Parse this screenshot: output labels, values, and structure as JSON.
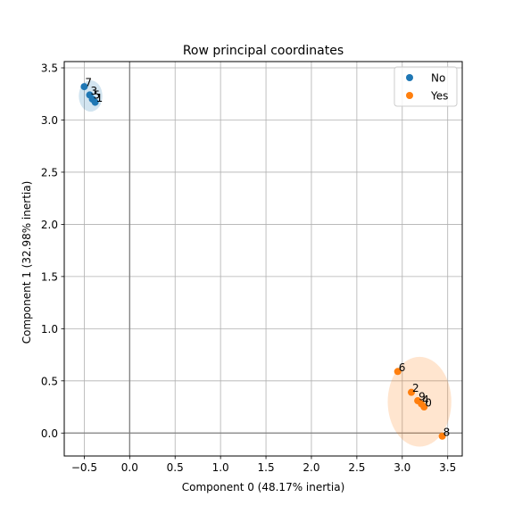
{
  "chart_data": {
    "type": "scatter",
    "title": "Row principal coordinates",
    "xlabel": "Component 0 (48.17% inertia)",
    "ylabel": "Component 1 (32.98% inertia)",
    "xlim": [
      -0.72,
      3.66
    ],
    "ylim": [
      -0.22,
      3.56
    ],
    "xticks": [
      -0.5,
      0.0,
      0.5,
      1.0,
      1.5,
      2.0,
      2.5,
      3.0,
      3.5
    ],
    "yticks": [
      0.0,
      0.5,
      1.0,
      1.5,
      2.0,
      2.5,
      3.0,
      3.5
    ],
    "xtick_labels": [
      "−0.5",
      "0.0",
      "0.5",
      "1.0",
      "1.5",
      "2.0",
      "2.5",
      "3.0",
      "3.5"
    ],
    "ytick_labels": [
      "0.0",
      "0.5",
      "1.0",
      "1.5",
      "2.0",
      "2.5",
      "3.0",
      "3.5"
    ],
    "grid": true,
    "origin_lines": true,
    "legend_position": "top-right",
    "series": [
      {
        "name": "No",
        "color": "#1f77b4",
        "points": [
          {
            "label": "7",
            "x": -0.5,
            "y": 3.32
          },
          {
            "label": "3",
            "x": -0.44,
            "y": 3.24
          },
          {
            "label": "5",
            "x": -0.41,
            "y": 3.2
          },
          {
            "label": "1",
            "x": -0.38,
            "y": 3.17
          }
        ],
        "ellipse": {
          "cx": -0.43,
          "cy": 3.23,
          "rx": 0.13,
          "ry": 0.15
        }
      },
      {
        "name": "Yes",
        "color": "#ff7f0e",
        "points": [
          {
            "label": "6",
            "x": 2.95,
            "y": 0.59
          },
          {
            "label": "2",
            "x": 3.1,
            "y": 0.39
          },
          {
            "label": "9",
            "x": 3.17,
            "y": 0.31
          },
          {
            "label": "4",
            "x": 3.21,
            "y": 0.28
          },
          {
            "label": "0",
            "x": 3.24,
            "y": 0.25
          },
          {
            "label": "8",
            "x": 3.44,
            "y": -0.03
          }
        ],
        "ellipse": {
          "cx": 3.19,
          "cy": 0.3,
          "rx": 0.35,
          "ry": 0.43
        }
      }
    ]
  }
}
